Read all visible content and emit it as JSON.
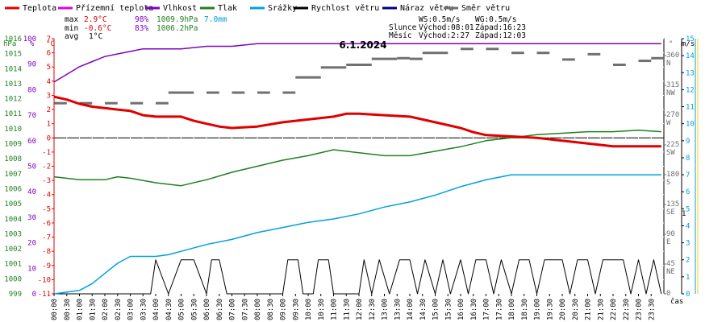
{
  "chart_data": {
    "type": "line",
    "title": "6.1.2024",
    "legend": [
      {
        "name": "Teplota",
        "color": "#e00000"
      },
      {
        "name": "Přízemní teplota",
        "color": "#e000e0"
      },
      {
        "name": "Vlhkost",
        "color": "#8000c0"
      },
      {
        "name": "Tlak",
        "color": "#208020"
      },
      {
        "name": "Srážky",
        "color": "#00a0e0"
      },
      {
        "name": "Rychlost větru",
        "color": "#000000"
      },
      {
        "name": "Náraz větru",
        "color": "#000080"
      },
      {
        "name": "Směr větru",
        "color": "#707070"
      }
    ],
    "stats": {
      "max_label": "max",
      "max_temp": "2.9°C",
      "max_hum": "98%",
      "max_press": "1009.9hPa",
      "precip": "7.0mm",
      "min_label": "min",
      "min_temp": "-0.6°C",
      "min_hum": "83%",
      "min_press": "1006.2hPa",
      "avg_label": "avg",
      "avg_temp": "1°C"
    },
    "info": {
      "ws": "WS:0.5m/s",
      "wg": "WG:0.5m/s",
      "sun_label": "Slunce",
      "sunrise": "Východ:08:01",
      "sunset": "Západ:16:23",
      "moon_label": "Měsíc",
      "moonrise": "Východ:2:27",
      "moonset": "Západ:12:03"
    },
    "axis_units": {
      "pressure": "hPa",
      "humidity": "%",
      "temperature": "°C",
      "direction_unit": "°",
      "wind": "m/s",
      "time": "čas"
    },
    "temp_ticks": [
      "-11",
      "-10",
      "-9",
      "-8",
      "-7",
      "-6",
      "-5",
      "-4",
      "-3",
      "-2",
      "-1",
      "0",
      "1",
      "2",
      "3",
      "4",
      "5",
      "6",
      "7"
    ],
    "humidity_ticks": [
      "0",
      "10",
      "20",
      "30",
      "40",
      "50",
      "60",
      "70",
      "80",
      "90",
      "100"
    ],
    "pressure_ticks": [
      "999",
      "1000",
      "1001",
      "1002",
      "1003",
      "1004",
      "1005",
      "1006",
      "1007",
      "1008",
      "1009",
      "1010",
      "1011",
      "1012",
      "1013",
      "1014",
      "1015",
      "1016"
    ],
    "wind_ticks": [
      "0",
      "1",
      "2",
      "3",
      "4",
      "5",
      "6",
      "7",
      "8",
      "9",
      "10",
      "11",
      "12",
      "13",
      "14",
      "15"
    ],
    "direction_ticks": [
      {
        "deg": "0",
        "dir": ""
      },
      {
        "deg": "45",
        "dir": "NE"
      },
      {
        "deg": "90",
        "dir": "E"
      },
      {
        "deg": "135",
        "dir": "SE"
      },
      {
        "deg": "180",
        "dir": "S"
      },
      {
        "deg": "225",
        "dir": "SW"
      },
      {
        "deg": "270",
        "dir": "W"
      },
      {
        "deg": "315",
        "dir": "NW"
      },
      {
        "deg": "360",
        "dir": "N"
      }
    ],
    "extra_right_label": "1",
    "time_labels": [
      "00:00",
      "00:30",
      "01:00",
      "01:30",
      "02:00",
      "02:30",
      "03:00",
      "03:30",
      "04:00",
      "04:30",
      "05:00",
      "05:30",
      "06:00",
      "06:30",
      "07:00",
      "07:30",
      "08:00",
      "08:30",
      "09:00",
      "09:30",
      "10:00",
      "10:30",
      "11:00",
      "11:30",
      "12:00",
      "12:30",
      "13:00",
      "13:30",
      "14:00",
      "14:30",
      "15:00",
      "15:30",
      "16:00",
      "16:30",
      "17:00",
      "17:30",
      "18:00",
      "18:30",
      "19:00",
      "19:30",
      "20:00",
      "20:30",
      "21:00",
      "21:30",
      "22:00",
      "22:30",
      "23:00",
      "23:30"
    ],
    "series": {
      "temperature": [
        [
          0,
          2.9
        ],
        [
          0.5,
          2.7
        ],
        [
          1,
          2.4
        ],
        [
          1.5,
          2.2
        ],
        [
          2,
          2.1
        ],
        [
          2.5,
          2.0
        ],
        [
          3,
          1.9
        ],
        [
          3.5,
          1.6
        ],
        [
          4,
          1.5
        ],
        [
          5,
          1.5
        ],
        [
          5.5,
          1.2
        ],
        [
          6,
          1.0
        ],
        [
          6.5,
          0.8
        ],
        [
          7,
          0.7
        ],
        [
          8,
          0.8
        ],
        [
          9,
          1.1
        ],
        [
          10,
          1.3
        ],
        [
          11,
          1.5
        ],
        [
          11.5,
          1.7
        ],
        [
          12,
          1.7
        ],
        [
          13,
          1.6
        ],
        [
          14,
          1.5
        ],
        [
          14.5,
          1.3
        ],
        [
          15,
          1.1
        ],
        [
          16,
          0.7
        ],
        [
          16.5,
          0.4
        ],
        [
          17,
          0.2
        ],
        [
          18,
          0.1
        ],
        [
          19,
          0.0
        ],
        [
          20,
          -0.2
        ],
        [
          21,
          -0.4
        ],
        [
          22,
          -0.6
        ],
        [
          23.9,
          -0.6
        ]
      ],
      "humidity": [
        [
          0,
          83
        ],
        [
          0.5,
          86
        ],
        [
          1,
          89
        ],
        [
          1.5,
          91
        ],
        [
          2,
          93
        ],
        [
          2.5,
          94
        ],
        [
          3,
          95
        ],
        [
          3.5,
          96
        ],
        [
          4,
          96
        ],
        [
          5,
          96
        ],
        [
          6,
          97
        ],
        [
          7,
          97
        ],
        [
          8,
          98
        ],
        [
          12,
          98
        ],
        [
          16,
          98
        ],
        [
          20,
          98
        ],
        [
          23.9,
          98
        ]
      ],
      "pressure": [
        [
          0,
          1006.8
        ],
        [
          1,
          1006.6
        ],
        [
          2,
          1006.6
        ],
        [
          2.5,
          1006.8
        ],
        [
          3,
          1006.7
        ],
        [
          4,
          1006.4
        ],
        [
          5,
          1006.2
        ],
        [
          6,
          1006.6
        ],
        [
          7,
          1007.1
        ],
        [
          8,
          1007.5
        ],
        [
          9,
          1007.9
        ],
        [
          10,
          1008.2
        ],
        [
          11,
          1008.6
        ],
        [
          12,
          1008.4
        ],
        [
          13,
          1008.2
        ],
        [
          14,
          1008.2
        ],
        [
          15,
          1008.5
        ],
        [
          16,
          1008.8
        ],
        [
          17,
          1009.2
        ],
        [
          18,
          1009.4
        ],
        [
          19,
          1009.6
        ],
        [
          20,
          1009.7
        ],
        [
          21,
          1009.8
        ],
        [
          22,
          1009.8
        ],
        [
          23,
          1009.9
        ],
        [
          23.9,
          1009.8
        ]
      ],
      "precipitation": [
        [
          0,
          0
        ],
        [
          1,
          0.2
        ],
        [
          1.5,
          0.6
        ],
        [
          2,
          1.2
        ],
        [
          2.5,
          1.8
        ],
        [
          3,
          2.2
        ],
        [
          4,
          2.2
        ],
        [
          4.5,
          2.3
        ],
        [
          5,
          2.5
        ],
        [
          6,
          2.9
        ],
        [
          7,
          3.2
        ],
        [
          8,
          3.6
        ],
        [
          9,
          3.9
        ],
        [
          10,
          4.2
        ],
        [
          11,
          4.4
        ],
        [
          12,
          4.7
        ],
        [
          13,
          5.1
        ],
        [
          14,
          5.4
        ],
        [
          15,
          5.8
        ],
        [
          16,
          6.3
        ],
        [
          17,
          6.7
        ],
        [
          18,
          7.0
        ],
        [
          23.9,
          7.0
        ]
      ],
      "wind_speed": [
        [
          0,
          0
        ],
        [
          3.8,
          0
        ],
        [
          4.0,
          2
        ],
        [
          4.5,
          0
        ],
        [
          5.0,
          2
        ],
        [
          5.5,
          2
        ],
        [
          6.0,
          0
        ],
        [
          6.2,
          2
        ],
        [
          6.5,
          2
        ],
        [
          6.8,
          0
        ],
        [
          9.0,
          0
        ],
        [
          9.2,
          2
        ],
        [
          9.6,
          2
        ],
        [
          9.8,
          0
        ],
        [
          10.2,
          0
        ],
        [
          10.4,
          2
        ],
        [
          10.8,
          2
        ],
        [
          11.0,
          0
        ],
        [
          12.0,
          0
        ],
        [
          12.2,
          2
        ],
        [
          12.5,
          0
        ],
        [
          12.8,
          2
        ],
        [
          13.2,
          0
        ],
        [
          13.6,
          2
        ],
        [
          14.0,
          2
        ],
        [
          14.3,
          0
        ],
        [
          14.6,
          2
        ],
        [
          15.0,
          0
        ],
        [
          15.3,
          2
        ],
        [
          15.6,
          0
        ],
        [
          16.0,
          2
        ],
        [
          16.3,
          0
        ],
        [
          16.6,
          2
        ],
        [
          17.0,
          2
        ],
        [
          17.3,
          0
        ],
        [
          17.6,
          2
        ],
        [
          18.0,
          0
        ],
        [
          18.3,
          2
        ],
        [
          18.7,
          2
        ],
        [
          19.0,
          0
        ],
        [
          19.3,
          2
        ],
        [
          20.0,
          2
        ],
        [
          20.3,
          0
        ],
        [
          20.6,
          2
        ],
        [
          21.0,
          2
        ],
        [
          21.3,
          0
        ],
        [
          21.6,
          2
        ],
        [
          22.0,
          2
        ],
        [
          22.4,
          2
        ],
        [
          22.7,
          0
        ],
        [
          23.0,
          2
        ],
        [
          23.3,
          0
        ],
        [
          23.6,
          2
        ],
        [
          23.9,
          0
        ]
      ],
      "wind_direction": [
        [
          0,
          288
        ],
        [
          1,
          288
        ],
        [
          2,
          288
        ],
        [
          3,
          288
        ],
        [
          4,
          288
        ],
        [
          4.5,
          304
        ],
        [
          5,
          304
        ],
        [
          6,
          304
        ],
        [
          7,
          304
        ],
        [
          8,
          304
        ],
        [
          9,
          304
        ],
        [
          9.5,
          327
        ],
        [
          10,
          327
        ],
        [
          10.5,
          342
        ],
        [
          11,
          342
        ],
        [
          11.5,
          346
        ],
        [
          12,
          346
        ],
        [
          12.5,
          355
        ],
        [
          13,
          355
        ],
        [
          13.5,
          356
        ],
        [
          14,
          355
        ],
        [
          14.5,
          364
        ],
        [
          15,
          364
        ],
        [
          16,
          370
        ],
        [
          17,
          370
        ],
        [
          18,
          364
        ],
        [
          19,
          364
        ],
        [
          20,
          354
        ],
        [
          21,
          362
        ],
        [
          22,
          346
        ],
        [
          23,
          352
        ],
        [
          23.5,
          356
        ]
      ]
    }
  }
}
